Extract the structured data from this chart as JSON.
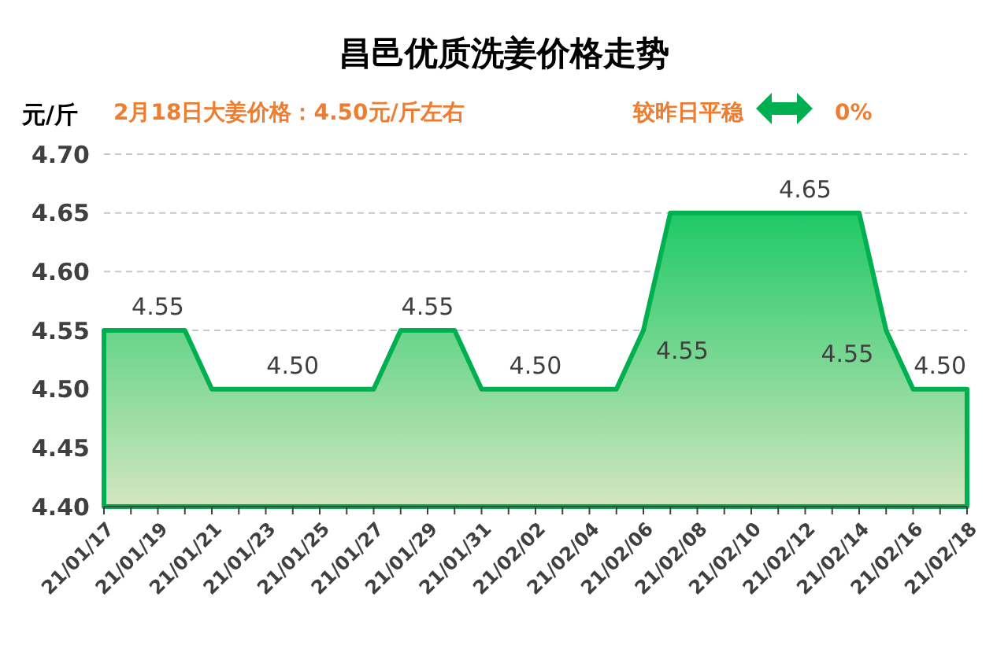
{
  "chart_data": {
    "type": "area",
    "title": "昌邑优质洗姜价格走势",
    "subtitle": "2月18日大姜价格：4.50元/斤左右",
    "ylabel": "元/斤",
    "annotations": [
      "较昨日平稳",
      "0%"
    ],
    "categories": [
      "21/01/17",
      null,
      "21/01/19",
      null,
      "21/01/21",
      null,
      "21/01/23",
      null,
      "21/01/25",
      null,
      "21/01/27",
      null,
      "21/01/29",
      null,
      "21/01/31",
      null,
      "21/02/02",
      null,
      "21/02/04",
      null,
      "21/02/06",
      null,
      "21/02/08",
      null,
      "21/02/10",
      null,
      "21/02/12",
      null,
      "21/02/14",
      null,
      "21/02/16",
      null,
      "21/02/18"
    ],
    "series": [
      {
        "color": "#00b050",
        "values": [
          4.55,
          4.55,
          4.55,
          4.55,
          4.5,
          4.5,
          4.5,
          4.5,
          4.5,
          4.5,
          4.5,
          4.55,
          4.55,
          4.55,
          4.5,
          4.5,
          4.5,
          4.5,
          4.5,
          4.5,
          4.55,
          4.65,
          4.65,
          4.65,
          4.65,
          4.65,
          4.65,
          4.65,
          4.65,
          4.55,
          4.5,
          4.5,
          4.5
        ],
        "value_labels": [
          null,
          null,
          "4.55",
          null,
          null,
          null,
          null,
          "4.50",
          null,
          null,
          null,
          null,
          "4.55",
          null,
          null,
          null,
          "4.50",
          null,
          null,
          null,
          "4.55",
          null,
          null,
          null,
          null,
          null,
          "4.65",
          null,
          null,
          "4.55",
          null,
          "4.50",
          null
        ]
      }
    ],
    "ylim": [
      4.4,
      4.7
    ],
    "yticks": [
      {
        "value": 4.4,
        "label": "4.40"
      },
      4.45,
      {
        "value": 4.5,
        "label": "4.50"
      },
      4.55,
      {
        "value": 4.6,
        "label": "4.60"
      },
      4.65,
      {
        "value": 4.7,
        "label": "4.70"
      }
    ],
    "grid": "y"
  }
}
